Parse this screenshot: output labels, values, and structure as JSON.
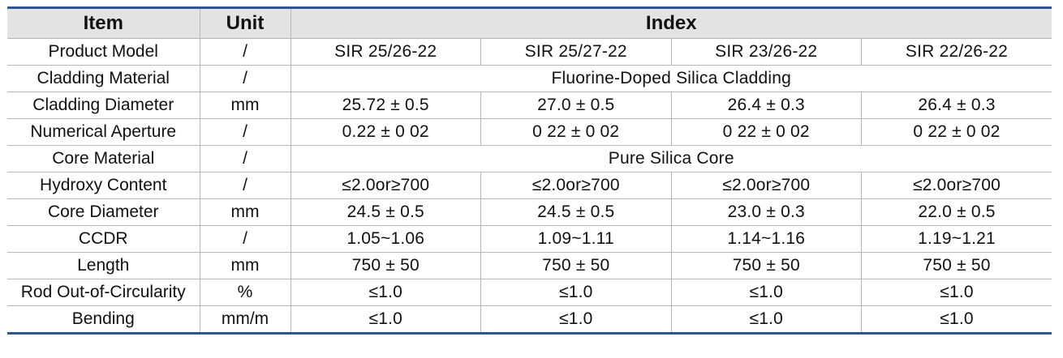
{
  "table": {
    "headers": {
      "item": "Item",
      "unit": "Unit",
      "index": "Index"
    },
    "rows": [
      {
        "item": "Product Model",
        "unit": "/",
        "values": [
          "SIR 25/26-22",
          "SIR 25/27-22",
          "SIR 23/26-22",
          "SIR 22/26-22"
        ]
      },
      {
        "item": "Cladding Material",
        "unit": "/",
        "merged": "Fluorine-Doped Silica Cladding"
      },
      {
        "item": "Cladding Diameter",
        "unit": "mm",
        "values": [
          "25.72 ± 0.5",
          "27.0 ± 0.5",
          "26.4 ± 0.3",
          "26.4 ± 0.3"
        ]
      },
      {
        "item": "Numerical Aperture",
        "unit": "/",
        "values": [
          "0.22 ± 0 02",
          "0 22 ± 0 02",
          "0 22 ± 0 02",
          "0 22 ± 0 02"
        ]
      },
      {
        "item": "Core Material",
        "unit": "/",
        "merged": "Pure Silica Core"
      },
      {
        "item": "Hydroxy Content",
        "unit": "/",
        "values": [
          "≤2.0or≥700",
          "≤2.0or≥700",
          "≤2.0or≥700",
          "≤2.0or≥700"
        ]
      },
      {
        "item": "Core Diameter",
        "unit": "mm",
        "values": [
          "24.5 ± 0.5",
          "24.5 ± 0.5",
          "23.0 ± 0.3",
          "22.0 ± 0.5"
        ]
      },
      {
        "item": "CCDR",
        "unit": "/",
        "values": [
          "1.05~1.06",
          "1.09~1.11",
          "1.14~1.16",
          "1.19~1.21"
        ]
      },
      {
        "item": "Length",
        "unit": "mm",
        "values": [
          "750 ± 50",
          "750 ± 50",
          "750 ± 50",
          "750 ± 50"
        ]
      },
      {
        "item": "Rod Out-of-Circularity",
        "unit": "%",
        "values": [
          "≤1.0",
          "≤1.0",
          "≤1.0",
          "≤1.0"
        ]
      },
      {
        "item": "Bending",
        "unit": "mm/m",
        "values": [
          "≤1.0",
          "≤1.0",
          "≤1.0",
          "≤1.0"
        ]
      }
    ]
  },
  "colors": {
    "header_bg": "#e3e3e3",
    "rule": "#2f5597",
    "grid": "#b7b7b7"
  }
}
